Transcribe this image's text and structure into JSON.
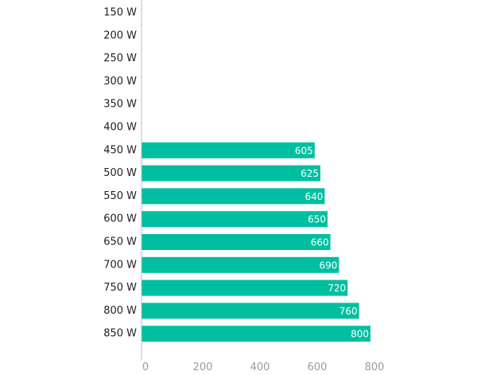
{
  "chart_data": {
    "type": "bar",
    "orientation": "horizontal",
    "categories": [
      "150 W",
      "200 W",
      "250 W",
      "300 W",
      "350 W",
      "400 W",
      "450 W",
      "500 W",
      "550 W",
      "600 W",
      "650 W",
      "700 W",
      "750 W",
      "800 W",
      "850 W"
    ],
    "values": [
      null,
      null,
      null,
      null,
      null,
      null,
      605,
      625,
      640,
      650,
      660,
      690,
      720,
      760,
      800
    ],
    "data_labels": [
      "",
      "",
      "",
      "",
      "",
      "",
      "605",
      "625",
      "640",
      "650",
      "660",
      "690",
      "720",
      "760",
      "800"
    ],
    "title": "",
    "xlabel": "",
    "ylabel": "",
    "xlim": [
      0,
      800
    ],
    "x_ticks": [
      0,
      200,
      400,
      600,
      800
    ],
    "x_tick_labels": [
      "0",
      "200",
      "400",
      "600",
      "800"
    ],
    "grid": false,
    "legend": "none",
    "bar_color": "#00bfa0"
  }
}
